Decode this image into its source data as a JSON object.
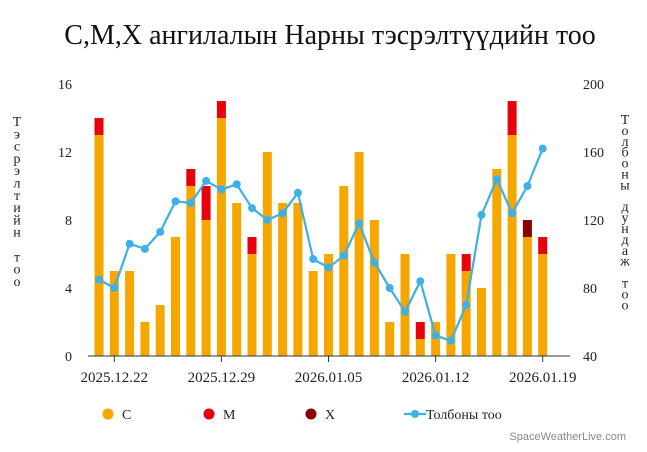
{
  "chart_data": {
    "type": "bar",
    "title": "C,M,X ангилалын Нарны тэсрэлтүүдийн тоо",
    "ylabel_left": "Тэсрэлтийн тоо",
    "ylabel_right": "Толбоны дундаж тоо",
    "ylim_left": [
      0,
      16
    ],
    "yticks_left": [
      0,
      4,
      8,
      12,
      16
    ],
    "ylim_right": [
      40,
      200
    ],
    "yticks_right": [
      40,
      80,
      120,
      160,
      200
    ],
    "x_tick_labels": [
      "2025.12.22",
      "2025.12.29",
      "2026.01.05",
      "2026.01.12",
      "2026.01.19"
    ],
    "x_tick_dates": [
      "2025-12-22",
      "2025-12-29",
      "2026-01-05",
      "2026-01-12",
      "2026-01-19"
    ],
    "dates": [
      "2025-12-21",
      "2025-12-22",
      "2025-12-23",
      "2025-12-24",
      "2025-12-25",
      "2025-12-26",
      "2025-12-27",
      "2025-12-28",
      "2025-12-29",
      "2025-12-30",
      "2025-12-31",
      "2026-01-01",
      "2026-01-02",
      "2026-01-03",
      "2026-01-04",
      "2026-01-05",
      "2026-01-06",
      "2026-01-07",
      "2026-01-08",
      "2026-01-09",
      "2026-01-10",
      "2026-01-11",
      "2026-01-12",
      "2026-01-13",
      "2026-01-14",
      "2026-01-15",
      "2026-01-16",
      "2026-01-17",
      "2026-01-18",
      "2026-01-19"
    ],
    "series": [
      {
        "name": "C",
        "color": "#f5a700",
        "values": [
          13,
          5,
          5,
          2,
          3,
          7,
          10,
          8,
          14,
          9,
          6,
          12,
          9,
          9,
          5,
          6,
          10,
          12,
          8,
          2,
          6,
          1,
          2,
          6,
          5,
          4,
          11,
          13,
          7,
          6
        ]
      },
      {
        "name": "M",
        "color": "#e8000b",
        "values": [
          1,
          0,
          0,
          0,
          0,
          0,
          1,
          2,
          1,
          0,
          1,
          0,
          0,
          0,
          0,
          0,
          0,
          0,
          0,
          0,
          0,
          1,
          0,
          0,
          1,
          0,
          0,
          2,
          0,
          1
        ]
      },
      {
        "name": "X",
        "color": "#8b0000",
        "values": [
          0,
          0,
          0,
          0,
          0,
          0,
          0,
          0,
          0,
          0,
          0,
          0,
          0,
          0,
          0,
          0,
          0,
          0,
          0,
          0,
          0,
          0,
          0,
          0,
          0,
          0,
          0,
          0,
          1,
          0
        ]
      },
      {
        "name": "Толбоны тоо",
        "type": "line",
        "color": "#3cb0e8",
        "axis": "right",
        "values": [
          85,
          80,
          106,
          103,
          113,
          131,
          130,
          143,
          138,
          141,
          127,
          120,
          124,
          136,
          97,
          92,
          99,
          118,
          95,
          80,
          66,
          84,
          52,
          49,
          70,
          123,
          144,
          124,
          140,
          162
        ]
      }
    ],
    "legend_position": "bottom",
    "grid": false
  },
  "credit": "SpaceWeatherLive.com"
}
